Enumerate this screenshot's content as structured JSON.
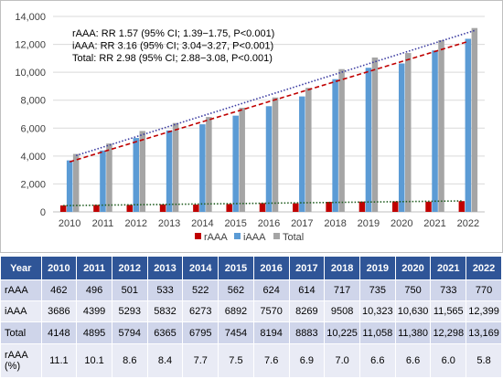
{
  "chart_data": {
    "type": "bar",
    "categories": [
      "2010",
      "2011",
      "2012",
      "2013",
      "2014",
      "2015",
      "2016",
      "2017",
      "2018",
      "2019",
      "2020",
      "2021",
      "2022"
    ],
    "series": [
      {
        "name": "rAAA",
        "color": "#c00000",
        "values": [
          462,
          496,
          501,
          533,
          522,
          562,
          624,
          614,
          717,
          735,
          750,
          733,
          770
        ]
      },
      {
        "name": "iAAA",
        "color": "#5b9bd5",
        "values": [
          3686,
          4399,
          5293,
          5832,
          6273,
          6892,
          7570,
          8269,
          9508,
          10323,
          10630,
          11565,
          12399
        ]
      },
      {
        "name": "Total",
        "color": "#a5a5a5",
        "values": [
          4148,
          4895,
          5794,
          6365,
          6795,
          7454,
          8194,
          8883,
          10225,
          11058,
          11380,
          12298,
          13169
        ]
      }
    ],
    "yticks": [
      "0",
      "2,000",
      "4,000",
      "6,000",
      "8,000",
      "10,000",
      "12,000",
      "14,000"
    ],
    "ylim": [
      0,
      14000
    ],
    "trendlines": [
      {
        "series": "rAAA",
        "color": "#1f5c1f",
        "style": "dotted"
      },
      {
        "series": "iAAA",
        "color": "#c00000",
        "style": "dashed"
      },
      {
        "series": "Total",
        "color": "#3a3aa0",
        "style": "dotted"
      }
    ],
    "annotations": [
      "rAAA: RR 1.57 (95% CI; 1.39−1.75, P<0.001)",
      "iAAA: RR 3.16 (95% CI; 3.04−3.27, P<0.001)",
      "Total: RR 2.98 (95% CI; 2.88−3.08, P<0.001)"
    ],
    "legend_position": "bottom"
  },
  "table": {
    "header_label": "Year",
    "years": [
      "2010",
      "2011",
      "2012",
      "2013",
      "2014",
      "2015",
      "2016",
      "2017",
      "2018",
      "2019",
      "2020",
      "2021",
      "2022"
    ],
    "rows": [
      {
        "label": "rAAA",
        "values": [
          "462",
          "496",
          "501",
          "533",
          "522",
          "562",
          "624",
          "614",
          "717",
          "735",
          "750",
          "733",
          "770"
        ]
      },
      {
        "label": "iAAA",
        "values": [
          "3686",
          "4399",
          "5293",
          "5832",
          "6273",
          "6892",
          "7570",
          "8269",
          "9508",
          "10,323",
          "10,630",
          "11,565",
          "12,399"
        ]
      },
      {
        "label": "Total",
        "values": [
          "4148",
          "4895",
          "5794",
          "6365",
          "6795",
          "7454",
          "8194",
          "8883",
          "10,225",
          "11,058",
          "11,380",
          "12,298",
          "13,169"
        ]
      },
      {
        "label": "rAAA (%)",
        "values": [
          "11.1",
          "10.1",
          "8.6",
          "8.4",
          "7.7",
          "7.5",
          "7.6",
          "6.9",
          "7.0",
          "6.6",
          "6.6",
          "6.0",
          "5.8"
        ]
      }
    ]
  }
}
